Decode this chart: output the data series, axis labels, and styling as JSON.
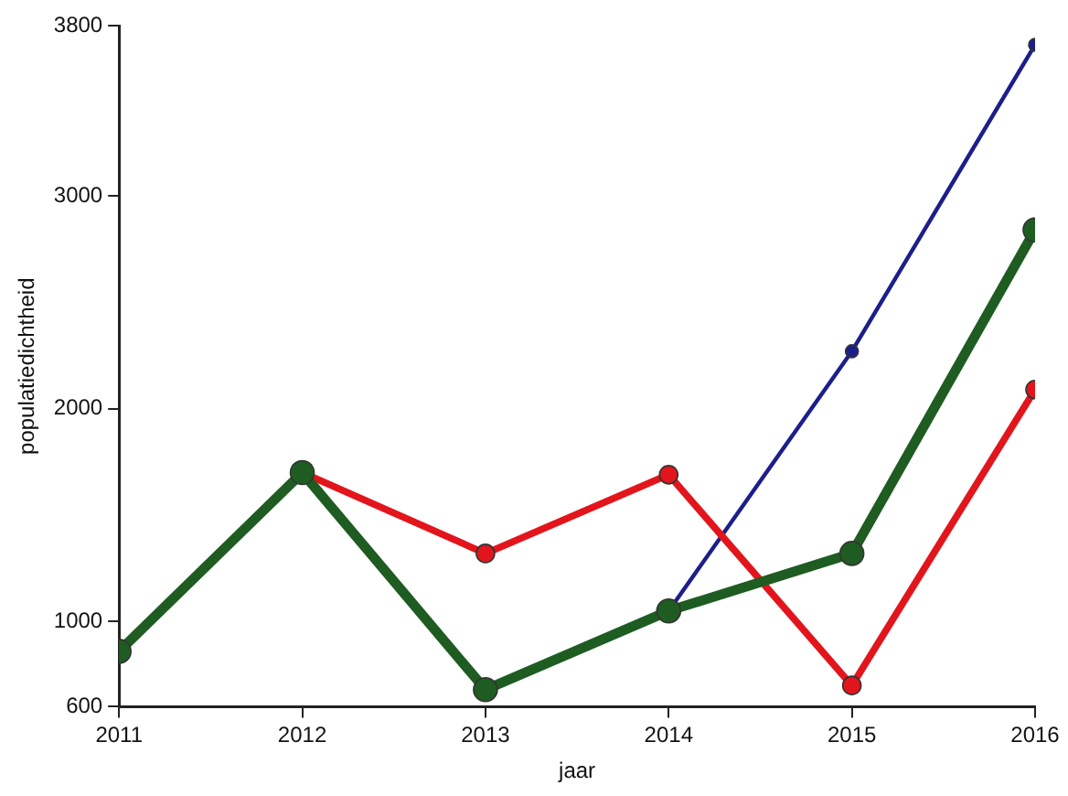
{
  "chart_data": {
    "type": "line",
    "xlabel": "jaar",
    "ylabel": "populatiedichtheid",
    "x": [
      2011,
      2012,
      2013,
      2014,
      2015,
      2016
    ],
    "xlim": [
      2011,
      2016
    ],
    "xticks": [
      2011,
      2012,
      2013,
      2014,
      2015,
      2016
    ],
    "ylim": [
      600,
      3800
    ],
    "yticks": [
      600,
      1000,
      2000,
      3000,
      3800
    ],
    "series": [
      {
        "color": "#1f5c22",
        "values": [
          860,
          1700,
          680,
          1050,
          1320,
          2840
        ]
      },
      {
        "color": "#e3151c",
        "values": [
          null,
          1700,
          1320,
          1690,
          700,
          2090
        ]
      },
      {
        "color": "#1c1f8a",
        "values": [
          null,
          null,
          null,
          1050,
          2270,
          3710
        ]
      }
    ],
    "grid": false,
    "legend": false,
    "marker": "circle",
    "line_style": "solid"
  }
}
